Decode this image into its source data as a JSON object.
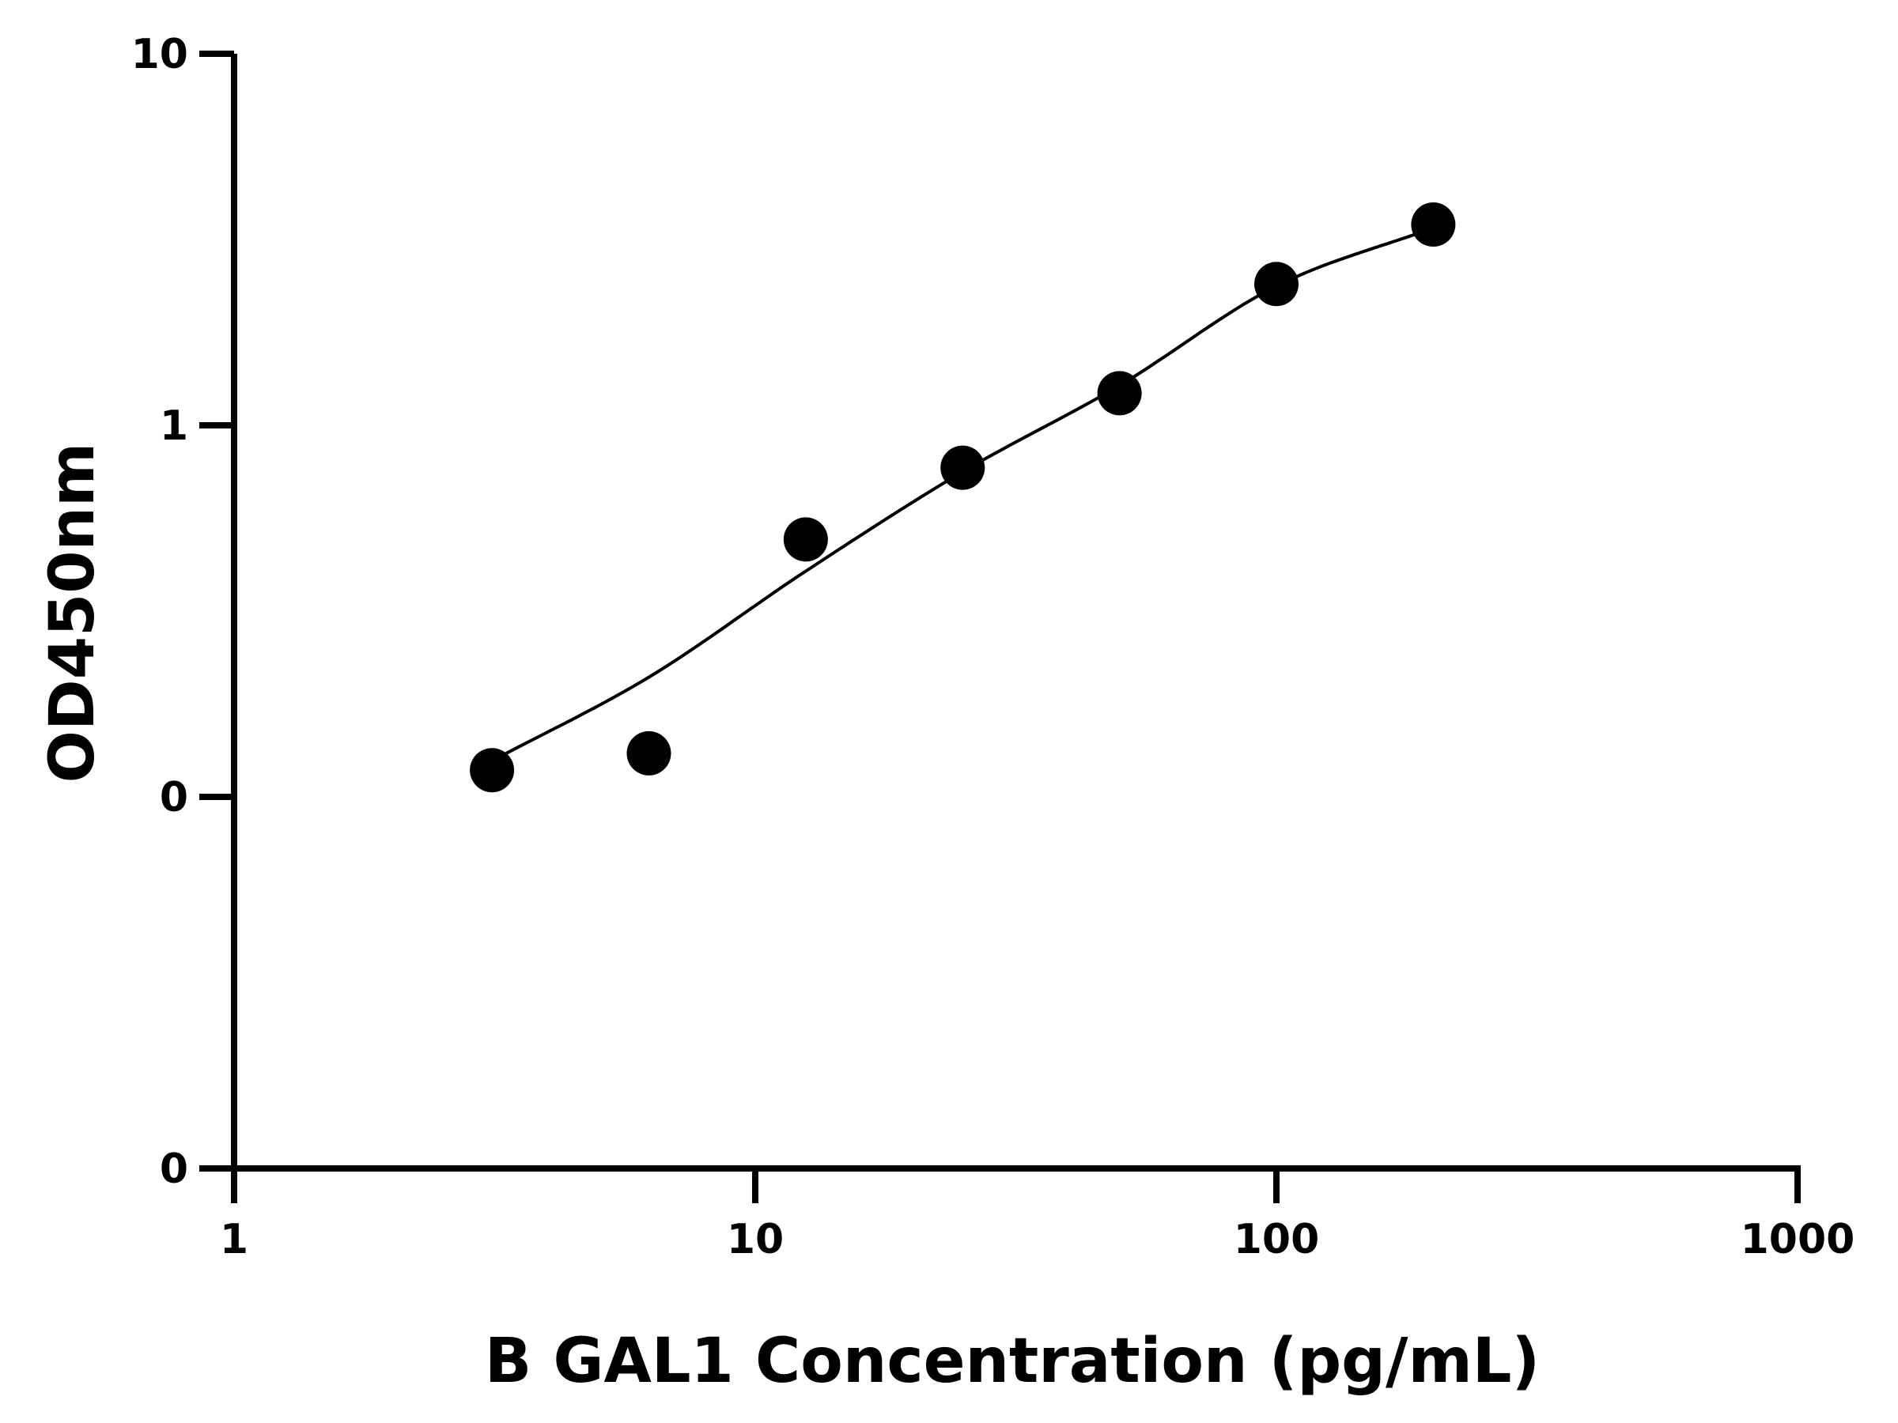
{
  "chart_data": {
    "type": "scatter",
    "title": "",
    "xlabel": "B GAL1 Concentration (pg/mL)",
    "ylabel": "OD450nm",
    "x_scale": "log",
    "y_scale": "log",
    "xlim": [
      1,
      1000
    ],
    "ylim": [
      0.01,
      10
    ],
    "x_ticks": [
      1,
      10,
      100,
      1000
    ],
    "x_tick_labels": [
      "1",
      "10",
      "100",
      "1000"
    ],
    "y_ticks": [
      0.01,
      0.1,
      1,
      10
    ],
    "y_tick_labels": [
      "0",
      "0",
      "1",
      "10"
    ],
    "grid": false,
    "legend": "none",
    "series": [
      {
        "x": [
          3.125,
          6.25,
          12.5,
          25,
          50,
          100,
          200
        ],
        "y": [
          0.118,
          0.131,
          0.493,
          0.769,
          1.22,
          2.4,
          3.47
        ],
        "fit_x": [
          3.125,
          6.25,
          12.5,
          25,
          50,
          100,
          200
        ],
        "fit_y": [
          0.125,
          0.21,
          0.405,
          0.75,
          1.28,
          2.37,
          3.4
        ]
      }
    ],
    "colors": {
      "marker": "#000000",
      "line": "#000000",
      "axis": "#000000"
    }
  }
}
